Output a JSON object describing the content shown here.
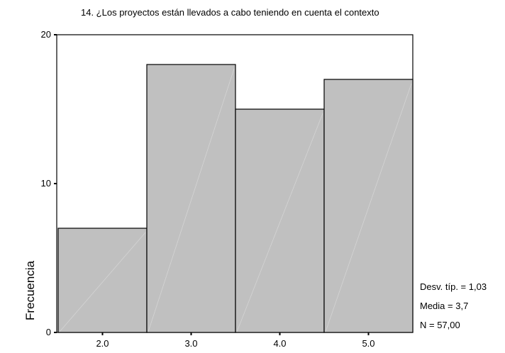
{
  "chart_data": {
    "type": "bar",
    "title": "14. ¿Los proyectos están llevados a cabo teniendo en cuenta el contexto",
    "xlabel": "",
    "ylabel": "Frecuencia",
    "categories": [
      "2.0",
      "3.0",
      "4.0",
      "5.0"
    ],
    "values": [
      7,
      18,
      15,
      17
    ],
    "ylim": [
      0,
      20
    ],
    "yticks": [
      "0",
      "10",
      "20"
    ],
    "grid": false,
    "bar_color": "#c0c0c0",
    "stats": {
      "std": "Desv. típ. = 1,03",
      "mean": "Media = 3,7",
      "n": "N = 57,00"
    }
  }
}
